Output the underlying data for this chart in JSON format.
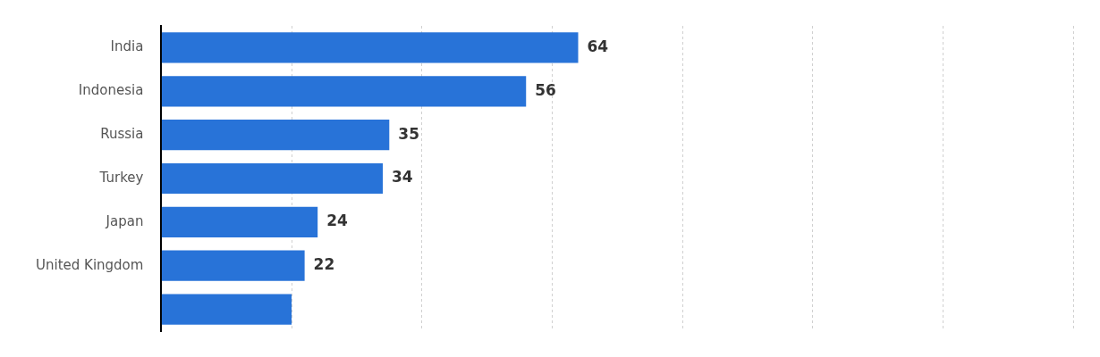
{
  "chart_data": {
    "type": "bar",
    "orientation": "horizontal",
    "categories": [
      "India",
      "Indonesia",
      "Russia",
      "Turkey",
      "Japan",
      "United Kingdom",
      null
    ],
    "values": [
      64,
      56,
      35,
      34,
      24,
      22,
      20
    ],
    "value_labels": [
      "64",
      "56",
      "35",
      "34",
      "24",
      "22",
      null
    ],
    "color": "#2873d8",
    "xlim": [
      0,
      140
    ],
    "xticks": [
      {
        "value": 0,
        "label": null
      },
      {
        "value": 20,
        "label": null
      },
      {
        "value": 40,
        "label": null
      },
      {
        "value": 60,
        "label": null
      },
      {
        "value": 80,
        "label": null
      },
      {
        "value": 100,
        "label": null
      },
      {
        "value": 120,
        "label": null
      },
      {
        "value": 140,
        "label": null
      }
    ],
    "grid": "x",
    "tick_labels": "y"
  }
}
